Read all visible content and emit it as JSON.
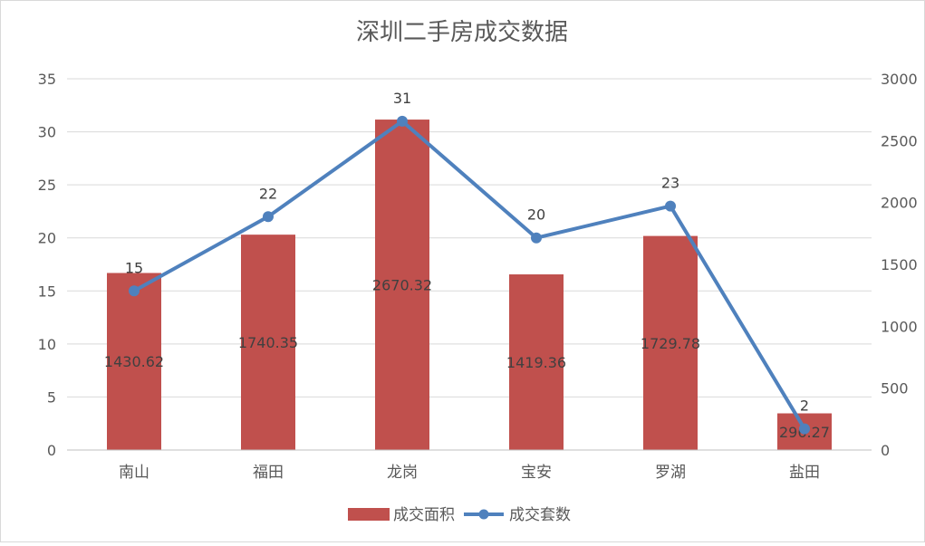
{
  "chart_data": {
    "type": "bar+line",
    "title": "深圳二手房成交数据",
    "categories": [
      "南山",
      "福田",
      "龙岗",
      "宝安",
      "罗湖",
      "盐田"
    ],
    "series": [
      {
        "name": "成交面积",
        "type": "bar",
        "axis": "right",
        "color": "#C0504D",
        "values": [
          1430.62,
          1740.35,
          2670.32,
          1419.36,
          1729.78,
          296.27
        ],
        "labels": [
          "1430.62",
          "1740.35",
          "2670.32",
          "1419.36",
          "1729.78",
          "296.27"
        ]
      },
      {
        "name": "成交套数",
        "type": "line",
        "axis": "left",
        "color": "#4F81BD",
        "values": [
          15,
          22,
          31,
          20,
          23,
          2
        ],
        "labels": [
          "15",
          "22",
          "31",
          "20",
          "23",
          "2"
        ]
      }
    ],
    "y_left": {
      "min": 0,
      "max": 35,
      "ticks": [
        0,
        5,
        10,
        15,
        20,
        25,
        30,
        35
      ],
      "tick_labels": [
        "0",
        "5",
        "10",
        "15",
        "20",
        "25",
        "30",
        "35"
      ]
    },
    "y_right": {
      "min": 0,
      "max": 3000,
      "ticks": [
        0,
        500,
        1000,
        1500,
        2000,
        2500,
        3000
      ],
      "tick_labels": [
        "0",
        "500",
        "1000",
        "1500",
        "2000",
        "2500",
        "3000"
      ]
    },
    "grid": true,
    "legend_position": "bottom"
  }
}
